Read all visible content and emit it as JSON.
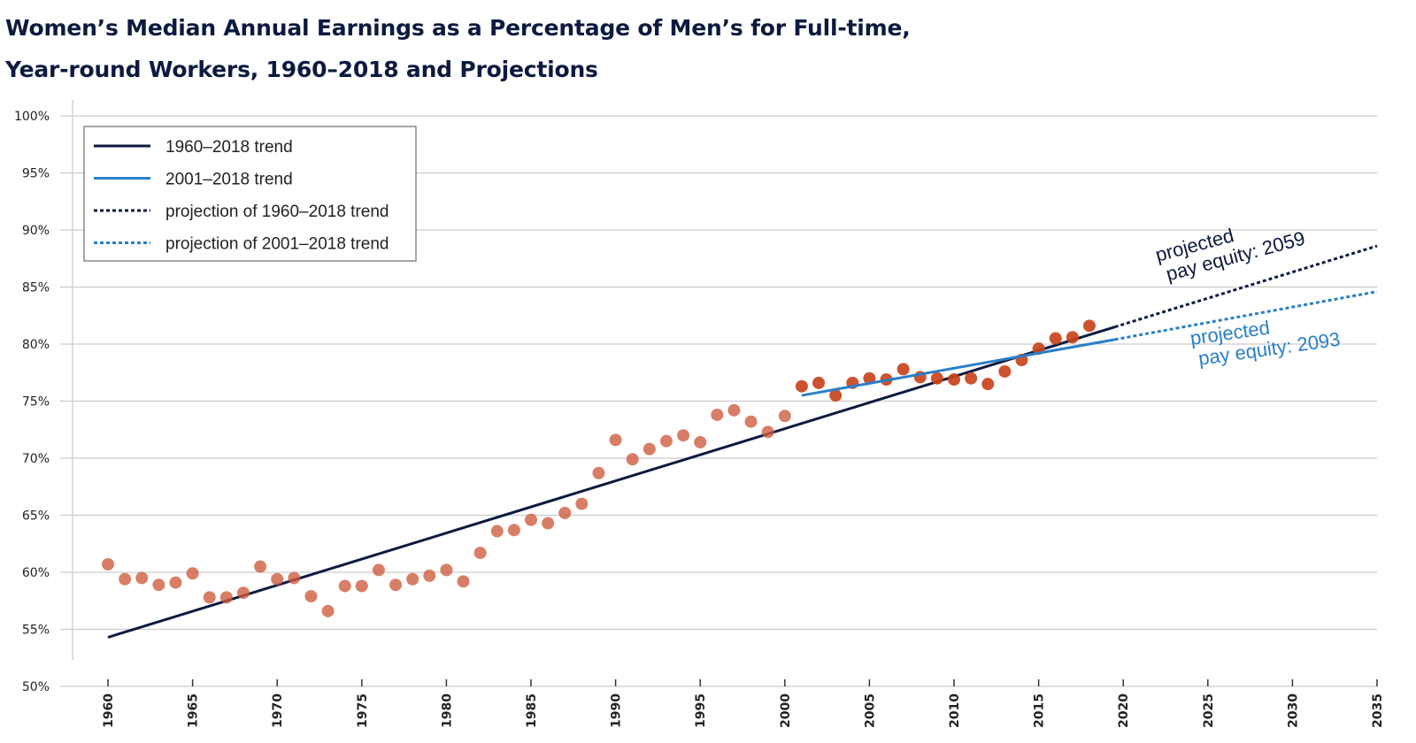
{
  "title": {
    "line1": "Women’s Median Annual Earnings as a Percentage of Men’s for Full-time,",
    "line2": "Year-round Workers, 1960–2018 and Projections"
  },
  "colors": {
    "navy": "#0d1a3f",
    "blue": "#2a7fc9",
    "dot": "#cd5a3c",
    "grid": "#cccccc"
  },
  "chart_data": {
    "type": "scatter",
    "xlim": [
      1960,
      2035
    ],
    "ylim": [
      50,
      100
    ],
    "grid": "horizontal",
    "legend_position": "top-left",
    "xticks": [
      "1960",
      "1965",
      "1970",
      "1975",
      "1980",
      "1985",
      "1990",
      "1995",
      "2000",
      "2005",
      "2010",
      "2015",
      "2020",
      "2025",
      "2030",
      "2035"
    ],
    "yticks": [
      "50%",
      "55%",
      "60%",
      "65%",
      "70%",
      "75%",
      "80%",
      "85%",
      "90%",
      "95%",
      "100%"
    ],
    "series": [
      {
        "name": "",
        "kind": "points",
        "x": [
          1960,
          1961,
          1962,
          1963,
          1964,
          1965,
          1966,
          1967,
          1968,
          1969,
          1970,
          1971,
          1972,
          1973,
          1974,
          1975,
          1976,
          1977,
          1978,
          1979,
          1980,
          1981,
          1982,
          1983,
          1984,
          1985,
          1986,
          1987,
          1988,
          1989,
          1990,
          1991,
          1992,
          1993,
          1994,
          1995,
          1996,
          1997,
          1998,
          1999,
          2000,
          2001,
          2002,
          2003,
          2004,
          2005,
          2006,
          2007,
          2008,
          2009,
          2010,
          2011,
          2012,
          2013,
          2014,
          2015,
          2016,
          2017,
          2018
        ],
        "y": [
          60.7,
          59.4,
          59.5,
          58.9,
          59.1,
          59.9,
          57.8,
          57.8,
          58.2,
          60.5,
          59.4,
          59.5,
          57.9,
          56.6,
          58.8,
          58.8,
          60.2,
          58.9,
          59.4,
          59.7,
          60.2,
          59.2,
          61.7,
          63.6,
          63.7,
          64.6,
          64.3,
          65.2,
          66.0,
          68.7,
          71.6,
          69.9,
          70.8,
          71.5,
          72.0,
          71.4,
          73.8,
          74.2,
          73.2,
          72.3,
          73.7,
          76.3,
          76.6,
          75.5,
          76.6,
          77.0,
          76.9,
          77.8,
          77.1,
          77.0,
          76.9,
          77.0,
          76.5,
          77.6,
          78.6,
          79.6,
          80.5,
          80.6,
          81.6
        ]
      },
      {
        "name": "1960–2018 trend",
        "kind": "line",
        "x": [
          1960,
          2019.5
        ],
        "y": [
          54.3,
          81.5
        ]
      },
      {
        "name": "2001–2018 trend",
        "kind": "line",
        "x": [
          2001,
          2019.5
        ],
        "y": [
          75.5,
          80.4
        ]
      },
      {
        "name": "projection of 1960–2018 trend",
        "kind": "dotted",
        "x": [
          2019.5,
          2035
        ],
        "y": [
          81.5,
          88.6
        ]
      },
      {
        "name": "projection of 2001–2018 trend",
        "kind": "dotted",
        "x": [
          2019.5,
          2035
        ],
        "y": [
          80.4,
          84.6
        ]
      }
    ],
    "annotations": [
      {
        "line1": "projected",
        "line2": "pay equity: 2059",
        "color": "#0d1a3f"
      },
      {
        "line1": "projected",
        "line2": "pay equity: 2093",
        "color": "#2a7fc9"
      }
    ]
  }
}
